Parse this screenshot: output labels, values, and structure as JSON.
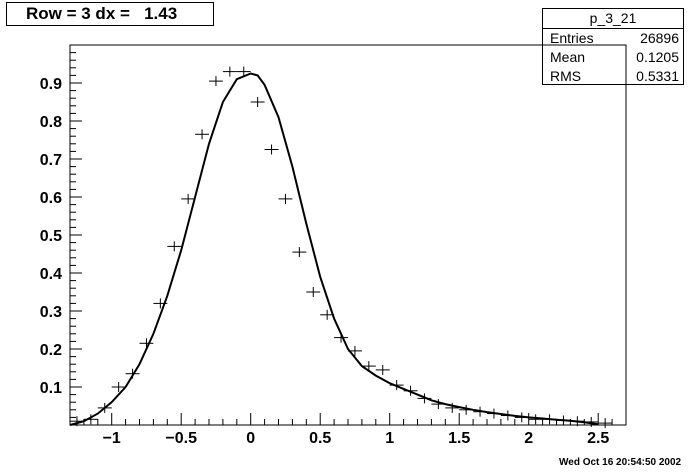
{
  "title": "Row = 3 dx =   1.43",
  "stats": {
    "name": "p_3_21",
    "rows": [
      {
        "label": "Entries",
        "value": "26896"
      },
      {
        "label": "Mean",
        "value": "0.1205"
      },
      {
        "label": "RMS",
        "value": "0.5331"
      }
    ]
  },
  "timestamp": "Wed Oct 16 20:54:50 2002",
  "chart_data": {
    "type": "scatter",
    "title": "Row = 3 dx =   1.43",
    "xlim": [
      -1.3,
      2.7
    ],
    "ylim": [
      0,
      1.0
    ],
    "x_ticks": [
      -1,
      -0.5,
      0,
      0.5,
      1,
      1.5,
      2,
      2.5
    ],
    "x_tick_labels": [
      "−1",
      "−0.5",
      "0",
      "0.5",
      "1",
      "1.5",
      "2",
      "2.5"
    ],
    "y_ticks": [
      0.1,
      0.2,
      0.3,
      0.4,
      0.5,
      0.6,
      0.7,
      0.8,
      0.9
    ],
    "y_tick_labels": [
      "0.1",
      "0.2",
      "0.3",
      "0.4",
      "0.5",
      "0.6",
      "0.7",
      "0.8",
      "0.9"
    ],
    "bin_width": 0.1,
    "series": [
      {
        "kind": "histogram points",
        "x": [
          -1.25,
          -1.15,
          -1.05,
          -0.95,
          -0.85,
          -0.75,
          -0.65,
          -0.55,
          -0.45,
          -0.35,
          -0.25,
          -0.15,
          -0.05,
          0.05,
          0.15,
          0.25,
          0.35,
          0.45,
          0.55,
          0.65,
          0.75,
          0.85,
          0.95,
          1.05,
          1.15,
          1.25,
          1.35,
          1.45,
          1.55,
          1.65,
          1.75,
          1.85,
          1.95,
          2.05,
          2.15,
          2.25,
          2.35,
          2.45,
          2.55
        ],
        "y": [
          0.01,
          0.015,
          0.045,
          0.1,
          0.135,
          0.215,
          0.32,
          0.47,
          0.595,
          0.765,
          0.905,
          0.93,
          0.93,
          0.85,
          0.725,
          0.595,
          0.455,
          0.35,
          0.29,
          0.23,
          0.195,
          0.155,
          0.145,
          0.105,
          0.09,
          0.07,
          0.055,
          0.045,
          0.04,
          0.035,
          0.03,
          0.025,
          0.02,
          0.015,
          0.015,
          0.012,
          0.01,
          0.008,
          0.005
        ]
      },
      {
        "kind": "fit curve",
        "x": [
          -1.3,
          -1.2,
          -1.1,
          -1.0,
          -0.9,
          -0.8,
          -0.7,
          -0.6,
          -0.5,
          -0.4,
          -0.3,
          -0.2,
          -0.1,
          0.0,
          0.05,
          0.1,
          0.2,
          0.3,
          0.4,
          0.5,
          0.6,
          0.7,
          0.8,
          0.9,
          1.0,
          1.1,
          1.2,
          1.3,
          1.4,
          1.5,
          1.6,
          1.7,
          1.8,
          1.9,
          2.0,
          2.1,
          2.2,
          2.3,
          2.4,
          2.5
        ],
        "y": [
          0.0,
          0.01,
          0.03,
          0.06,
          0.1,
          0.16,
          0.24,
          0.34,
          0.46,
          0.6,
          0.74,
          0.85,
          0.91,
          0.925,
          0.92,
          0.895,
          0.81,
          0.68,
          0.53,
          0.39,
          0.28,
          0.2,
          0.155,
          0.13,
          0.11,
          0.095,
          0.08,
          0.065,
          0.055,
          0.047,
          0.04,
          0.034,
          0.029,
          0.024,
          0.02,
          0.017,
          0.014,
          0.011,
          0.007,
          0.002
        ]
      }
    ]
  }
}
